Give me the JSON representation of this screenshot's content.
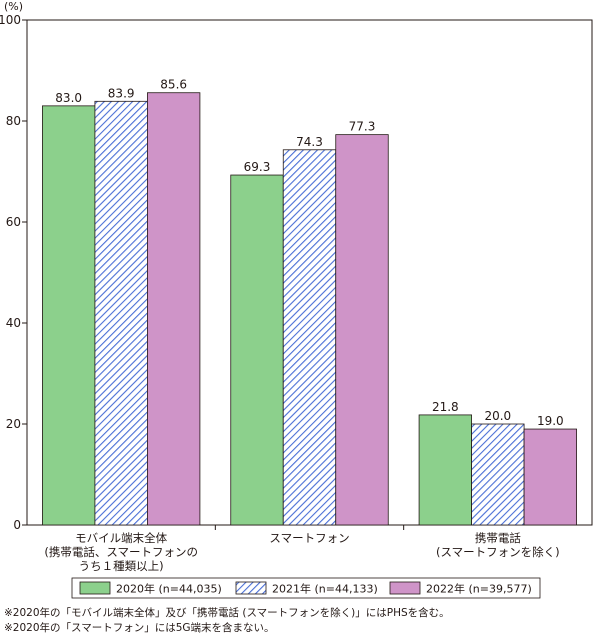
{
  "chart_data": {
    "type": "bar",
    "unit_label": "(%)",
    "ylim": [
      0,
      100
    ],
    "yticks": [
      0,
      20,
      40,
      60,
      80,
      100
    ],
    "categories": [
      [
        "モバイル端末全体",
        "(携帯電話、スマートフォンの",
        "うち１種類以上)"
      ],
      [
        "スマートフォン"
      ],
      [
        "携帯電話",
        "(スマートフォンを除く)"
      ]
    ],
    "series": [
      {
        "name": "2020年 (n=44,035)",
        "values": [
          83.0,
          69.3,
          21.8
        ],
        "labels": [
          "83.0",
          "69.3",
          "21.8"
        ],
        "color": "#8cd08c",
        "pattern": "solid"
      },
      {
        "name": "2021年 (n=44,133)",
        "values": [
          83.9,
          74.3,
          20.0
        ],
        "labels": [
          "83.9",
          "74.3",
          "20.0"
        ],
        "color": "#4a6fd6",
        "pattern": "hatch"
      },
      {
        "name": "2022年 (n=39,577)",
        "values": [
          85.6,
          77.3,
          19.0
        ],
        "labels": [
          "85.6",
          "77.3",
          "19.0"
        ],
        "color": "#cf94c8",
        "pattern": "solid"
      }
    ],
    "legend_position": "bottom",
    "grid": false
  },
  "notes": [
    "※2020年の「モバイル端末全体」及び「携帯電話 (スマートフォンを除く)」にはPHSを含む。",
    "※2020年の「スマートフォン」には5G端末を含まない。"
  ]
}
